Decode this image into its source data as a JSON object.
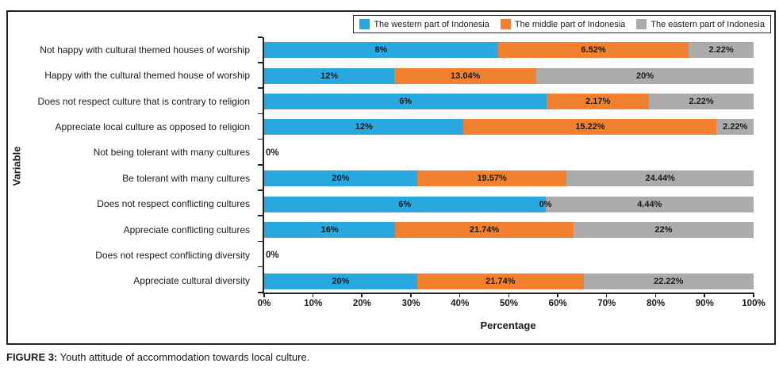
{
  "caption": {
    "prefix": "FIGURE 3:",
    "text": " Youth attitude of accommodation towards local culture."
  },
  "colors": {
    "axis": "#222225",
    "bar_label": "#1b1b1b",
    "western_blue": "#29A8DF",
    "middle_orange": "#F2802E",
    "eastern_gray": "#ABABAB"
  },
  "chart_data": {
    "type": "bar",
    "orientation": "horizontal",
    "stacked": true,
    "normalized_to_100_percent": true,
    "title": "",
    "xlabel": "Percentage",
    "ylabel": "Variable",
    "xlim": [
      0,
      100
    ],
    "x_ticks": [
      "0%",
      "10%",
      "20%",
      "30%",
      "40%",
      "50%",
      "60%",
      "70%",
      "80%",
      "90%",
      "100%"
    ],
    "grid": false,
    "legend_position": "top-right",
    "categories": [
      "Not happy with cultural themed houses of worship",
      "Happy with the cultural themed house of worship",
      "Does not respect culture that is contrary to religion",
      "Appreciate local culture as opposed to religion",
      "Not being tolerant with many cultures",
      "Be tolerant with many cultures",
      "Does not respect conflicting cultures",
      "Appreciate conflicting cultures",
      "Does not respect conflicting diversity",
      "Appreciate cultural diversity"
    ],
    "series": [
      {
        "name": "The western part of Indonesia",
        "color": "#29A8DF",
        "values": [
          8,
          12,
          6,
          12,
          0,
          20,
          6,
          16,
          0,
          20
        ],
        "labels": [
          "8%",
          "12%",
          "6%",
          "12%",
          "0%",
          "20%",
          "6%",
          "16%",
          "0%",
          "20%"
        ]
      },
      {
        "name": "The middle part of Indonesia",
        "color": "#F2802E",
        "values": [
          6.52,
          13.04,
          2.17,
          15.22,
          0,
          19.57,
          0,
          21.74,
          0,
          21.74
        ],
        "labels": [
          "6.52%",
          "13.04%",
          "2.17%",
          "15.22%",
          "",
          "19.57%",
          "0%",
          "21.74%",
          "",
          "21.74%"
        ]
      },
      {
        "name": "The eastern part of Indonesia",
        "color": "#ABABAB",
        "values": [
          2.22,
          20,
          2.22,
          2.22,
          0,
          24.44,
          4.44,
          22,
          0,
          22.22
        ],
        "labels": [
          "2.22%",
          "20%",
          "2.22%",
          "2.22%",
          "",
          "24.44%",
          "4.44%",
          "22%",
          "",
          "22.22%"
        ]
      }
    ]
  }
}
